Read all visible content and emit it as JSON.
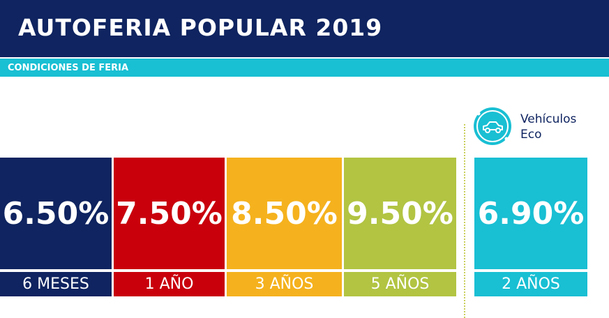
{
  "header": {
    "title": "AUTOFERIA POPULAR 2019"
  },
  "subheader": {
    "text": "CONDICIONES DE FERIA"
  },
  "rates": [
    {
      "value": "6.50%",
      "term": "6 MESES",
      "color": "#0f2460"
    },
    {
      "value": "7.50%",
      "term": "1 AÑO",
      "color": "#c9000c"
    },
    {
      "value": "8.50%",
      "term": "3 AÑOS",
      "color": "#f5b21e"
    },
    {
      "value": "9.50%",
      "term": "5 AÑOS",
      "color": "#b2c442"
    }
  ],
  "eco": {
    "label_line1": "Vehículos",
    "label_line2": "Eco",
    "icon": "eco-car-icon",
    "value": "6.90%",
    "term": "2 AÑOS",
    "color": "#19bfd3"
  },
  "colors": {
    "navy": "#0f2460",
    "cyan": "#19bfd3"
  }
}
